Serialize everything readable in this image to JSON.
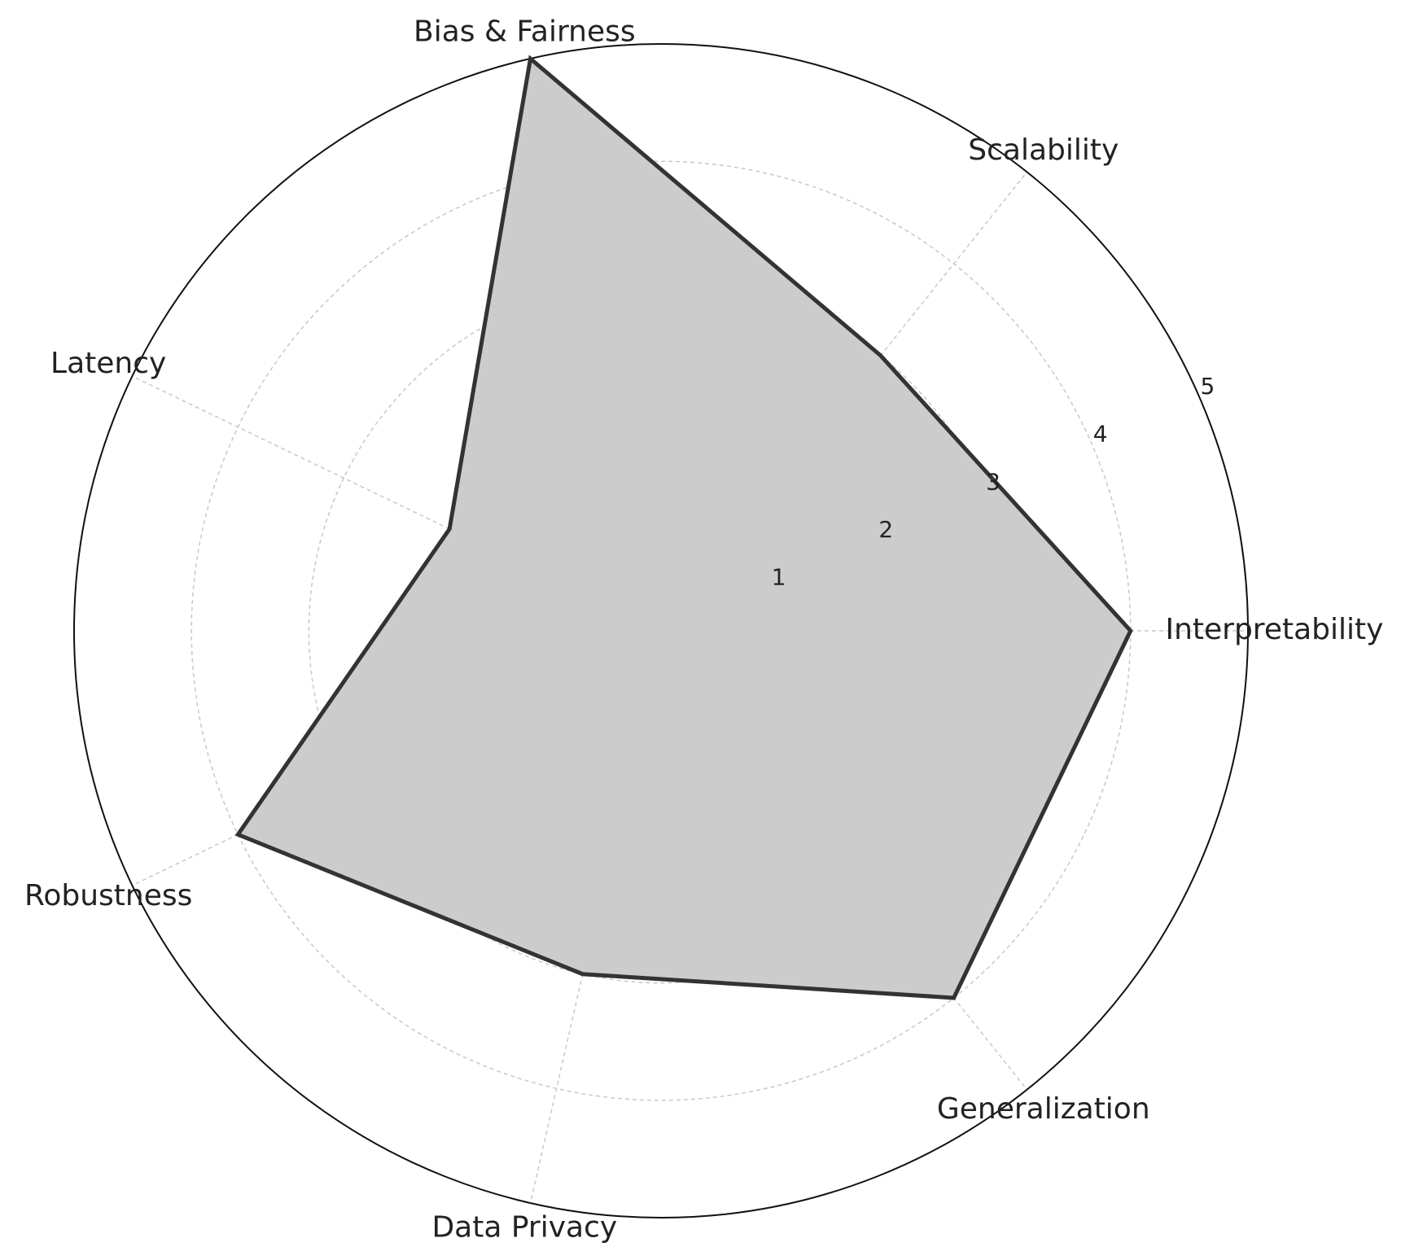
{
  "chart_data": {
    "type": "radar",
    "categories": [
      "Interpretability",
      "Scalability",
      "Bias & Fairness",
      "Latency",
      "Robustness",
      "Data Privacy",
      "Generalization"
    ],
    "values": [
      4,
      3,
      5,
      2,
      4,
      3,
      4
    ],
    "color": "#cccccc",
    "line_color": "#333333",
    "ylim": [
      0,
      5
    ],
    "yticks": [
      1,
      2,
      3,
      4,
      5
    ],
    "grid": true
  }
}
